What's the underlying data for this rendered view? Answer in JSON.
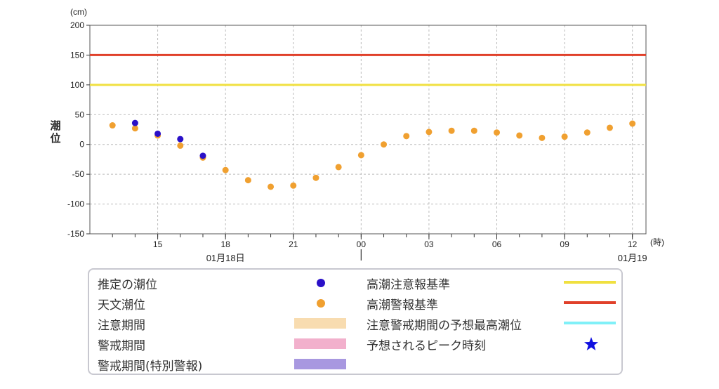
{
  "chart_data": {
    "type": "scatter",
    "y_unit": "(cm)",
    "ylabel": "潮位",
    "x_unit": "(時)",
    "ylim": [
      -150,
      200
    ],
    "y_ticks": [
      200,
      150,
      100,
      50,
      0,
      -50,
      -100,
      -150
    ],
    "x_hours_range": [
      12,
      36.6
    ],
    "x_ticks": [
      {
        "hour": 15,
        "label": "15"
      },
      {
        "hour": 18,
        "label": "18"
      },
      {
        "hour": 21,
        "label": "21"
      },
      {
        "hour": 24,
        "label": "00"
      },
      {
        "hour": 27,
        "label": "03"
      },
      {
        "hour": 30,
        "label": "06"
      },
      {
        "hour": 33,
        "label": "09"
      },
      {
        "hour": 36,
        "label": "12"
      }
    ],
    "date_labels": [
      {
        "hour": 18,
        "label": "01月18日"
      },
      {
        "hour": 36,
        "label": "01月19"
      }
    ],
    "grid": true,
    "series": [
      {
        "name": "天文潮位",
        "color": "#f0a030",
        "points": [
          [
            13,
            32
          ],
          [
            14,
            27
          ],
          [
            15,
            15
          ],
          [
            16,
            -2
          ],
          [
            17,
            -22
          ],
          [
            18,
            -43
          ],
          [
            19,
            -60
          ],
          [
            20,
            -71
          ],
          [
            21,
            -69
          ],
          [
            22,
            -56
          ],
          [
            23,
            -38
          ],
          [
            24,
            -18
          ],
          [
            25,
            0
          ],
          [
            26,
            14
          ],
          [
            27,
            21
          ],
          [
            28,
            23
          ],
          [
            29,
            23
          ],
          [
            30,
            20
          ],
          [
            31,
            15
          ],
          [
            32,
            11
          ],
          [
            33,
            13
          ],
          [
            34,
            20
          ],
          [
            35,
            28
          ],
          [
            36,
            35
          ]
        ]
      },
      {
        "name": "推定の潮位",
        "color": "#2a10c8",
        "points": [
          [
            14,
            36
          ],
          [
            15,
            18
          ],
          [
            16,
            9
          ],
          [
            17,
            -19
          ]
        ]
      }
    ],
    "thresholds": [
      {
        "name": "高潮警報基準",
        "value": 150,
        "color": "#e0402a"
      },
      {
        "name": "高潮注意報基準",
        "value": 100,
        "color": "#f0e040"
      }
    ]
  },
  "legend": {
    "items": [
      {
        "label": "推定の潮位",
        "kind": "dot",
        "color": "#2a10c8"
      },
      {
        "label": "天文潮位",
        "kind": "dot",
        "color": "#f0a030"
      },
      {
        "label": "注意期間",
        "kind": "band",
        "color": "#f8dcb0"
      },
      {
        "label": "警戒期間",
        "kind": "band",
        "color": "#f2b0cc"
      },
      {
        "label": "警戒期間(特別警報)",
        "kind": "band",
        "color": "#a898e0"
      },
      {
        "label": "高潮注意報基準",
        "kind": "line",
        "color": "#f0e040"
      },
      {
        "label": "高潮警報基準",
        "kind": "line",
        "color": "#e0402a"
      },
      {
        "label": "注意警戒期間の予想最高潮位",
        "kind": "line",
        "color": "#80f0f8"
      },
      {
        "label": "予想されるピーク時刻",
        "kind": "star",
        "color": "#1010e0"
      }
    ]
  }
}
